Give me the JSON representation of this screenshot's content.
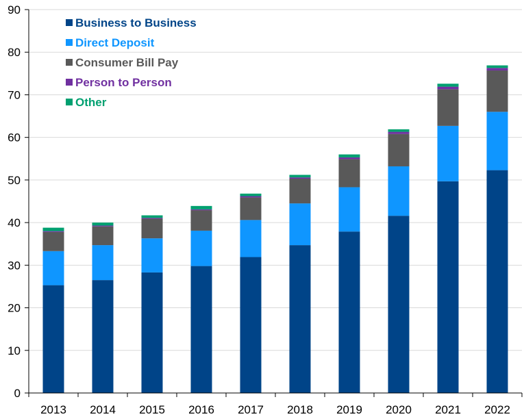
{
  "chart_data": {
    "type": "bar",
    "stacked": true,
    "categories": [
      "2013",
      "2014",
      "2015",
      "2016",
      "2017",
      "2018",
      "2019",
      "2020",
      "2021",
      "2022"
    ],
    "series": [
      {
        "name": "Business to Business",
        "color": "#004488",
        "values": [
          25.3,
          26.5,
          28.3,
          29.8,
          31.9,
          34.7,
          37.9,
          41.6,
          49.7,
          52.3
        ]
      },
      {
        "name": "Direct Deposit",
        "color": "#0f96ff",
        "values": [
          8.0,
          8.2,
          8.0,
          8.3,
          8.7,
          9.8,
          10.4,
          11.6,
          13.0,
          13.7
        ]
      },
      {
        "name": "Consumer Bill Pay",
        "color": "#595959",
        "values": [
          4.5,
          4.4,
          4.6,
          4.8,
          5.3,
          5.8,
          6.6,
          7.6,
          8.6,
          9.7
        ]
      },
      {
        "name": "Person to Person",
        "color": "#7030a0",
        "values": [
          0.2,
          0.2,
          0.2,
          0.2,
          0.3,
          0.3,
          0.4,
          0.5,
          0.6,
          0.6
        ]
      },
      {
        "name": "Other",
        "color": "#00a070",
        "values": [
          0.8,
          0.7,
          0.6,
          0.8,
          0.6,
          0.6,
          0.7,
          0.6,
          0.7,
          0.6
        ]
      }
    ],
    "yticks": [
      "0",
      "10",
      "20",
      "30",
      "40",
      "50",
      "60",
      "70",
      "80",
      "90"
    ],
    "ylim": [
      0,
      90
    ],
    "grid": true,
    "legend_position": "top-left"
  }
}
